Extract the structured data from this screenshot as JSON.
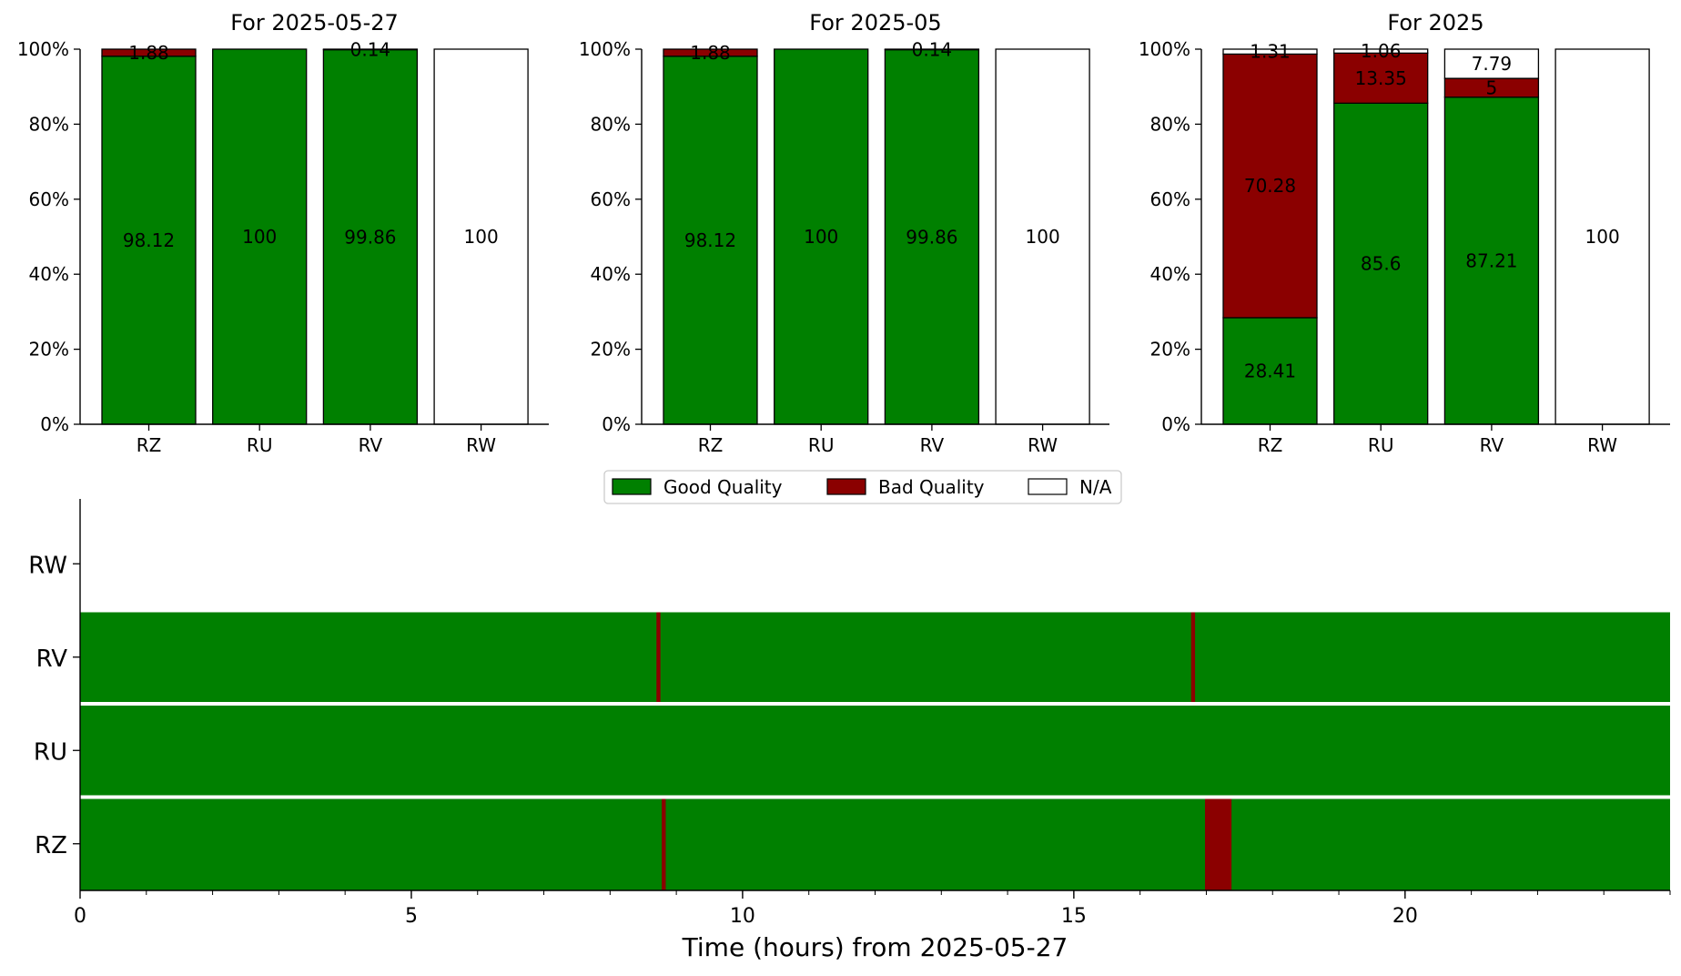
{
  "legend": {
    "items": [
      {
        "label": "Good Quality",
        "color": "#008000"
      },
      {
        "label": "Bad Quality",
        "color": "#8b0000"
      },
      {
        "label": "N/A",
        "color": "#ffffff"
      }
    ]
  },
  "chart_data": [
    {
      "type": "bar",
      "stacked": true,
      "title": "For 2025-05-27",
      "categories": [
        "RZ",
        "RU",
        "RV",
        "RW"
      ],
      "series": [
        {
          "name": "Good Quality",
          "color": "#008000",
          "values": [
            98.12,
            100.0,
            99.86,
            0
          ]
        },
        {
          "name": "Bad Quality",
          "color": "#8b0000",
          "values": [
            1.88,
            0,
            0.14,
            0
          ]
        },
        {
          "name": "N/A",
          "color": "#ffffff",
          "values": [
            0,
            0,
            0,
            100.0
          ]
        }
      ],
      "ylim": [
        0,
        100
      ],
      "yticks": [
        "0%",
        "20%",
        "40%",
        "60%",
        "80%",
        "100%"
      ]
    },
    {
      "type": "bar",
      "stacked": true,
      "title": "For 2025-05",
      "categories": [
        "RZ",
        "RU",
        "RV",
        "RW"
      ],
      "series": [
        {
          "name": "Good Quality",
          "color": "#008000",
          "values": [
            98.12,
            100.0,
            99.86,
            0
          ]
        },
        {
          "name": "Bad Quality",
          "color": "#8b0000",
          "values": [
            1.88,
            0,
            0.14,
            0
          ]
        },
        {
          "name": "N/A",
          "color": "#ffffff",
          "values": [
            0,
            0,
            0,
            100.0
          ]
        }
      ],
      "ylim": [
        0,
        100
      ],
      "yticks": [
        "0%",
        "20%",
        "40%",
        "60%",
        "80%",
        "100%"
      ]
    },
    {
      "type": "bar",
      "stacked": true,
      "title": "For 2025",
      "categories": [
        "RZ",
        "RU",
        "RV",
        "RW"
      ],
      "series": [
        {
          "name": "Good Quality",
          "color": "#008000",
          "values": [
            28.41,
            85.6,
            87.21,
            0
          ]
        },
        {
          "name": "Bad Quality",
          "color": "#8b0000",
          "values": [
            70.28,
            13.35,
            5.0,
            0
          ]
        },
        {
          "name": "N/A",
          "color": "#ffffff",
          "values": [
            1.31,
            1.06,
            7.79,
            100.0
          ]
        }
      ],
      "ylim": [
        0,
        100
      ],
      "yticks": [
        "0%",
        "20%",
        "40%",
        "60%",
        "80%",
        "100%"
      ]
    },
    {
      "type": "timeline",
      "xlabel": "Time (hours) from 2025-05-27",
      "xlim": [
        0,
        24
      ],
      "xticks": [
        0,
        5,
        10,
        15,
        20
      ],
      "rows": [
        {
          "label": "RZ",
          "base_color": "#008000",
          "intervals": [
            {
              "start": 8.78,
              "end": 8.84,
              "color": "#8b0000"
            },
            {
              "start": 16.98,
              "end": 17.38,
              "color": "#8b0000"
            }
          ]
        },
        {
          "label": "RU",
          "base_color": "#008000",
          "intervals": []
        },
        {
          "label": "RV",
          "base_color": "#008000",
          "intervals": [
            {
              "start": 8.7,
              "end": 8.76,
              "color": "#8b0000"
            },
            {
              "start": 16.77,
              "end": 16.83,
              "color": "#8b0000"
            }
          ]
        },
        {
          "label": "RW",
          "base_color": "#ffffff",
          "intervals": []
        }
      ]
    }
  ]
}
